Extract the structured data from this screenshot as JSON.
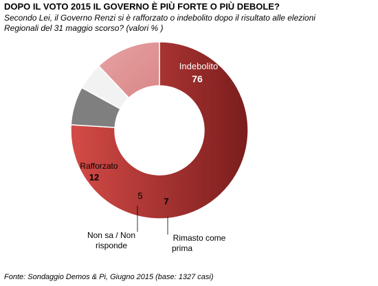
{
  "title": "DOPO IL VOTO 2015 IL GOVERNO È  PIÙ FORTE O PIÙ DEBOLE?",
  "subtitle": "Secondo Lei, il Governo Renzi si è rafforzato o indebolito dopo il risultato alle elezioni Regionali del 31 maggio scorso? (valori % )",
  "source": "Fonte: Sondaggio Demos & Pi, Giugno 2015 (base: 1327 casi)",
  "chart_data": {
    "type": "pie",
    "style": "donut",
    "slices": [
      {
        "label": "Indebolito",
        "value": 76,
        "color": "#a52a2a"
      },
      {
        "label": "Rimasto come prima",
        "value": 7,
        "color": "#808080"
      },
      {
        "label": "Non sa / Non risponde",
        "value": 5,
        "color": "#f2f2f2"
      },
      {
        "label": "Rafforzato",
        "value": 12,
        "color": "#e09a9a"
      }
    ],
    "value_labels": [
      "76",
      "7",
      "5",
      "12"
    ],
    "category_labels": {
      "indebolito": "Indebolito",
      "rimasto_line1": "Rimasto come",
      "rimasto_line2": "prima",
      "nonsa_line1": "Non sa / Non",
      "nonsa_line2": "risponde",
      "rafforzato": "Rafforzato"
    }
  }
}
